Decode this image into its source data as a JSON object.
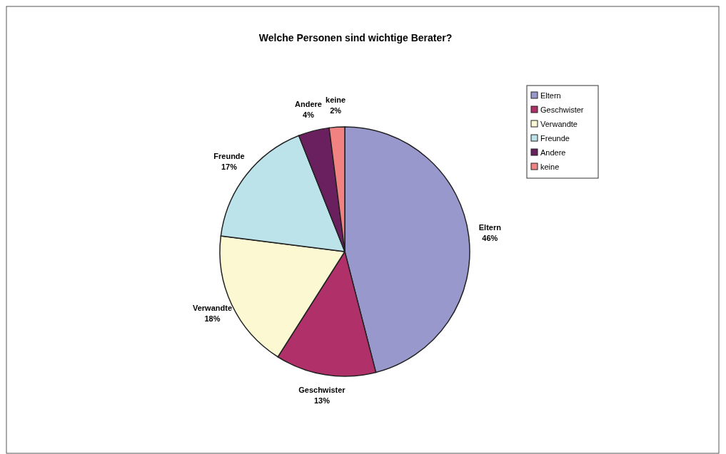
{
  "chart_data": {
    "type": "pie",
    "title": "Welche Personen sind wichtige Berater?",
    "categories": [
      "Eltern",
      "Geschwister",
      "Verwandte",
      "Freunde",
      "Andere",
      "keine"
    ],
    "values": [
      46,
      13,
      18,
      17,
      4,
      2
    ],
    "colors": [
      "#9898cc",
      "#b0306a",
      "#fcf8d2",
      "#bde3ea",
      "#6a1f5e",
      "#f08282"
    ],
    "value_labels": [
      "46%",
      "13%",
      "18%",
      "17%",
      "4%",
      "2%"
    ],
    "legend": "top right"
  }
}
